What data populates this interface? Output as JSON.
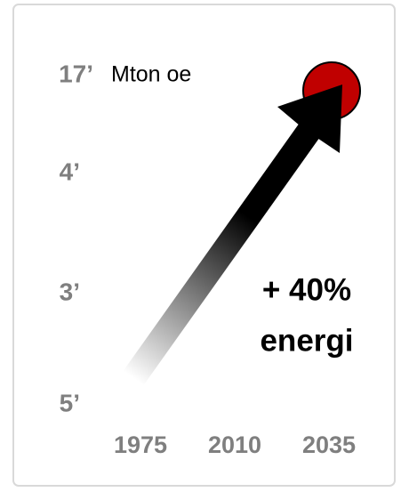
{
  "y_labels": [
    "17’",
    "4’",
    "3’",
    "5’"
  ],
  "unit": "Mton oe",
  "x_labels": [
    "1975",
    "2010",
    "2035"
  ],
  "annotation": [
    "+ 40%",
    "energi"
  ]
}
